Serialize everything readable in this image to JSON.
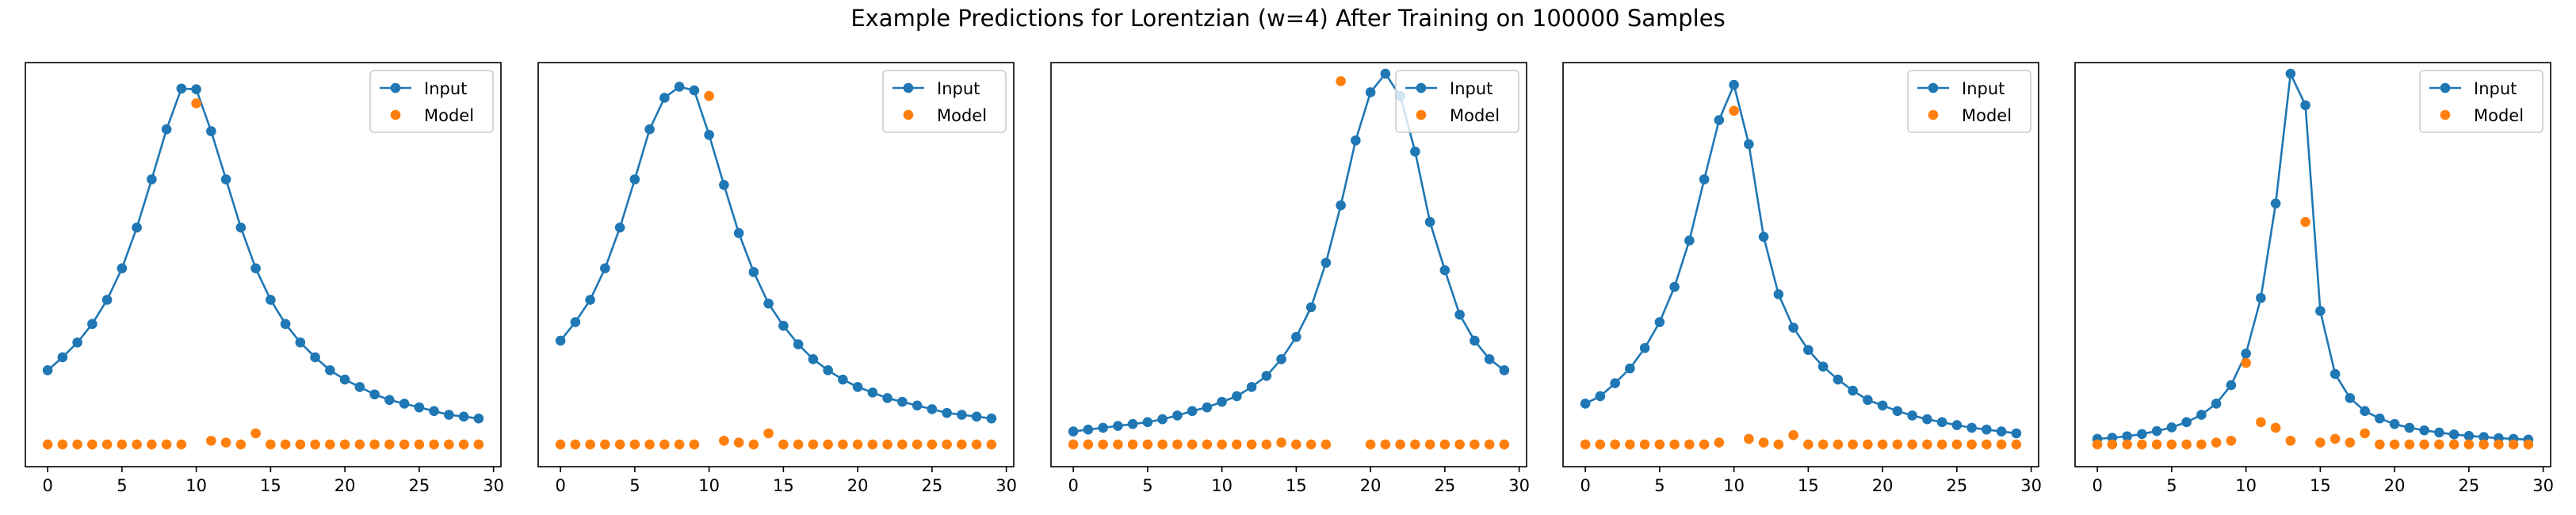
{
  "figure": {
    "title": "Example Predictions for Lorentzian (w=4) After Training on 100000 Samples"
  },
  "chart_data": [
    {
      "type": "scatter",
      "legend_position": "upper right",
      "x": [
        0,
        1,
        2,
        3,
        4,
        5,
        6,
        7,
        8,
        9,
        10,
        11,
        12,
        13,
        14,
        15,
        16,
        17,
        18,
        19,
        20,
        21,
        22,
        23,
        24,
        25,
        26,
        27,
        28,
        29
      ],
      "xticks": [
        0,
        5,
        10,
        15,
        20,
        25,
        30
      ],
      "xlim": [
        -1.5,
        30.5
      ],
      "ylim": [
        -0.06,
        1.03
      ],
      "series": [
        {
          "name": "Input",
          "style": "line-marker",
          "color": "#1f77b4",
          "values": [
            0.2,
            0.235,
            0.275,
            0.325,
            0.39,
            0.475,
            0.585,
            0.715,
            0.85,
            0.96,
            0.958,
            0.845,
            0.715,
            0.585,
            0.475,
            0.39,
            0.325,
            0.275,
            0.235,
            0.2,
            0.175,
            0.155,
            0.135,
            0.12,
            0.11,
            0.1,
            0.09,
            0.08,
            0.075,
            0.07
          ]
        },
        {
          "name": "Model",
          "style": "marker",
          "color": "#ff7f0e",
          "values": [
            0.0,
            0.0,
            0.0,
            0.0,
            0.0,
            0.0,
            0.0,
            0.0,
            0.0,
            0.0,
            0.92,
            0.01,
            0.005,
            0.0,
            0.03,
            0.0,
            0.0,
            0.0,
            0.0,
            0.0,
            0.0,
            0.0,
            0.0,
            0.0,
            0.0,
            0.0,
            0.0,
            0.0,
            0.0,
            0.0
          ]
        }
      ]
    },
    {
      "type": "scatter",
      "legend_position": "upper right",
      "x": [
        0,
        1,
        2,
        3,
        4,
        5,
        6,
        7,
        8,
        9,
        10,
        11,
        12,
        13,
        14,
        15,
        16,
        17,
        18,
        19,
        20,
        21,
        22,
        23,
        24,
        25,
        26,
        27,
        28,
        29
      ],
      "xticks": [
        0,
        5,
        10,
        15,
        20,
        25,
        30
      ],
      "xlim": [
        -1.5,
        30.5
      ],
      "ylim": [
        -0.06,
        1.03
      ],
      "series": [
        {
          "name": "Input",
          "style": "line-marker",
          "color": "#1f77b4",
          "values": [
            0.28,
            0.33,
            0.39,
            0.475,
            0.585,
            0.715,
            0.85,
            0.935,
            0.965,
            0.955,
            0.835,
            0.7,
            0.57,
            0.465,
            0.38,
            0.32,
            0.27,
            0.23,
            0.2,
            0.175,
            0.155,
            0.14,
            0.125,
            0.115,
            0.105,
            0.095,
            0.085,
            0.08,
            0.075,
            0.07
          ]
        },
        {
          "name": "Model",
          "style": "marker",
          "color": "#ff7f0e",
          "values": [
            0.0,
            0.0,
            0.0,
            0.0,
            0.0,
            0.0,
            0.0,
            0.0,
            0.0,
            0.0,
            0.94,
            0.01,
            0.005,
            0.0,
            0.03,
            0.0,
            0.0,
            0.0,
            0.0,
            0.0,
            0.0,
            0.0,
            0.0,
            0.0,
            0.0,
            0.0,
            0.0,
            0.0,
            0.0,
            0.0
          ]
        }
      ]
    },
    {
      "type": "scatter",
      "legend_position": "upper right",
      "x": [
        0,
        1,
        2,
        3,
        4,
        5,
        6,
        7,
        8,
        9,
        10,
        11,
        12,
        13,
        14,
        15,
        16,
        17,
        18,
        19,
        20,
        21,
        22,
        23,
        24,
        25,
        26,
        27,
        28,
        29
      ],
      "xticks": [
        0,
        5,
        10,
        15,
        20,
        25,
        30
      ],
      "xlim": [
        -1.5,
        30.5
      ],
      "ylim": [
        -0.06,
        1.03
      ],
      "series": [
        {
          "name": "Input",
          "style": "line-marker",
          "color": "#1f77b4",
          "values": [
            0.035,
            0.04,
            0.045,
            0.05,
            0.055,
            0.06,
            0.068,
            0.078,
            0.09,
            0.1,
            0.115,
            0.13,
            0.155,
            0.185,
            0.23,
            0.29,
            0.37,
            0.49,
            0.645,
            0.82,
            0.95,
            1.0,
            0.94,
            0.79,
            0.6,
            0.47,
            0.35,
            0.28,
            0.23,
            0.2
          ]
        },
        {
          "name": "Model",
          "style": "marker",
          "color": "#ff7f0e",
          "values": [
            0.0,
            0.0,
            0.0,
            0.0,
            0.0,
            0.0,
            0.0,
            0.0,
            0.0,
            0.0,
            0.0,
            0.0,
            0.0,
            0.0,
            0.005,
            0.0,
            0.0,
            0.0,
            0.98,
            null,
            0.0,
            0.0,
            0.0,
            0.0,
            0.0,
            0.0,
            0.0,
            0.0,
            0.0,
            0.0
          ]
        }
      ]
    },
    {
      "type": "scatter",
      "legend_position": "upper right",
      "x": [
        0,
        1,
        2,
        3,
        4,
        5,
        6,
        7,
        8,
        9,
        10,
        11,
        12,
        13,
        14,
        15,
        16,
        17,
        18,
        19,
        20,
        21,
        22,
        23,
        24,
        25,
        26,
        27,
        28,
        29
      ],
      "xticks": [
        0,
        5,
        10,
        15,
        20,
        25,
        30
      ],
      "xlim": [
        -1.5,
        30.5
      ],
      "ylim": [
        -0.06,
        1.03
      ],
      "series": [
        {
          "name": "Input",
          "style": "line-marker",
          "color": "#1f77b4",
          "values": [
            0.11,
            0.13,
            0.165,
            0.205,
            0.26,
            0.33,
            0.425,
            0.55,
            0.715,
            0.875,
            0.97,
            0.81,
            0.56,
            0.405,
            0.315,
            0.255,
            0.21,
            0.175,
            0.145,
            0.12,
            0.105,
            0.09,
            0.078,
            0.068,
            0.06,
            0.052,
            0.045,
            0.04,
            0.035,
            0.03
          ]
        },
        {
          "name": "Model",
          "style": "marker",
          "color": "#ff7f0e",
          "values": [
            0.0,
            0.0,
            0.0,
            0.0,
            0.0,
            0.0,
            0.0,
            0.0,
            0.0,
            0.005,
            0.9,
            0.015,
            0.005,
            0.0,
            0.025,
            0.0,
            0.0,
            0.0,
            0.0,
            0.0,
            0.0,
            0.0,
            0.0,
            0.0,
            0.0,
            0.0,
            0.0,
            0.0,
            0.0,
            0.0
          ]
        }
      ]
    },
    {
      "type": "scatter",
      "legend_position": "upper right",
      "x": [
        0,
        1,
        2,
        3,
        4,
        5,
        6,
        7,
        8,
        9,
        10,
        11,
        12,
        13,
        14,
        15,
        16,
        17,
        18,
        19,
        20,
        21,
        22,
        23,
        24,
        25,
        26,
        27,
        28,
        29
      ],
      "xticks": [
        0,
        5,
        10,
        15,
        20,
        25,
        30
      ],
      "xlim": [
        -1.5,
        30.5
      ],
      "ylim": [
        -0.06,
        1.03
      ],
      "series": [
        {
          "name": "Input",
          "style": "line-marker",
          "color": "#1f77b4",
          "values": [
            0.015,
            0.018,
            0.022,
            0.028,
            0.036,
            0.046,
            0.06,
            0.08,
            0.11,
            0.16,
            0.245,
            0.395,
            0.65,
            1.0,
            0.915,
            0.36,
            0.19,
            0.125,
            0.09,
            0.07,
            0.055,
            0.045,
            0.038,
            0.032,
            0.027,
            0.023,
            0.02,
            0.017,
            0.015,
            0.013
          ]
        },
        {
          "name": "Model",
          "style": "marker",
          "color": "#ff7f0e",
          "values": [
            0.0,
            0.0,
            0.0,
            0.0,
            0.0,
            0.0,
            0.0,
            0.0,
            0.005,
            0.01,
            0.22,
            0.06,
            0.045,
            0.01,
            0.6,
            0.005,
            0.015,
            0.005,
            0.03,
            0.0,
            0.0,
            0.0,
            0.0,
            0.0,
            0.0,
            0.0,
            0.0,
            0.0,
            0.0,
            0.0
          ]
        }
      ]
    }
  ]
}
